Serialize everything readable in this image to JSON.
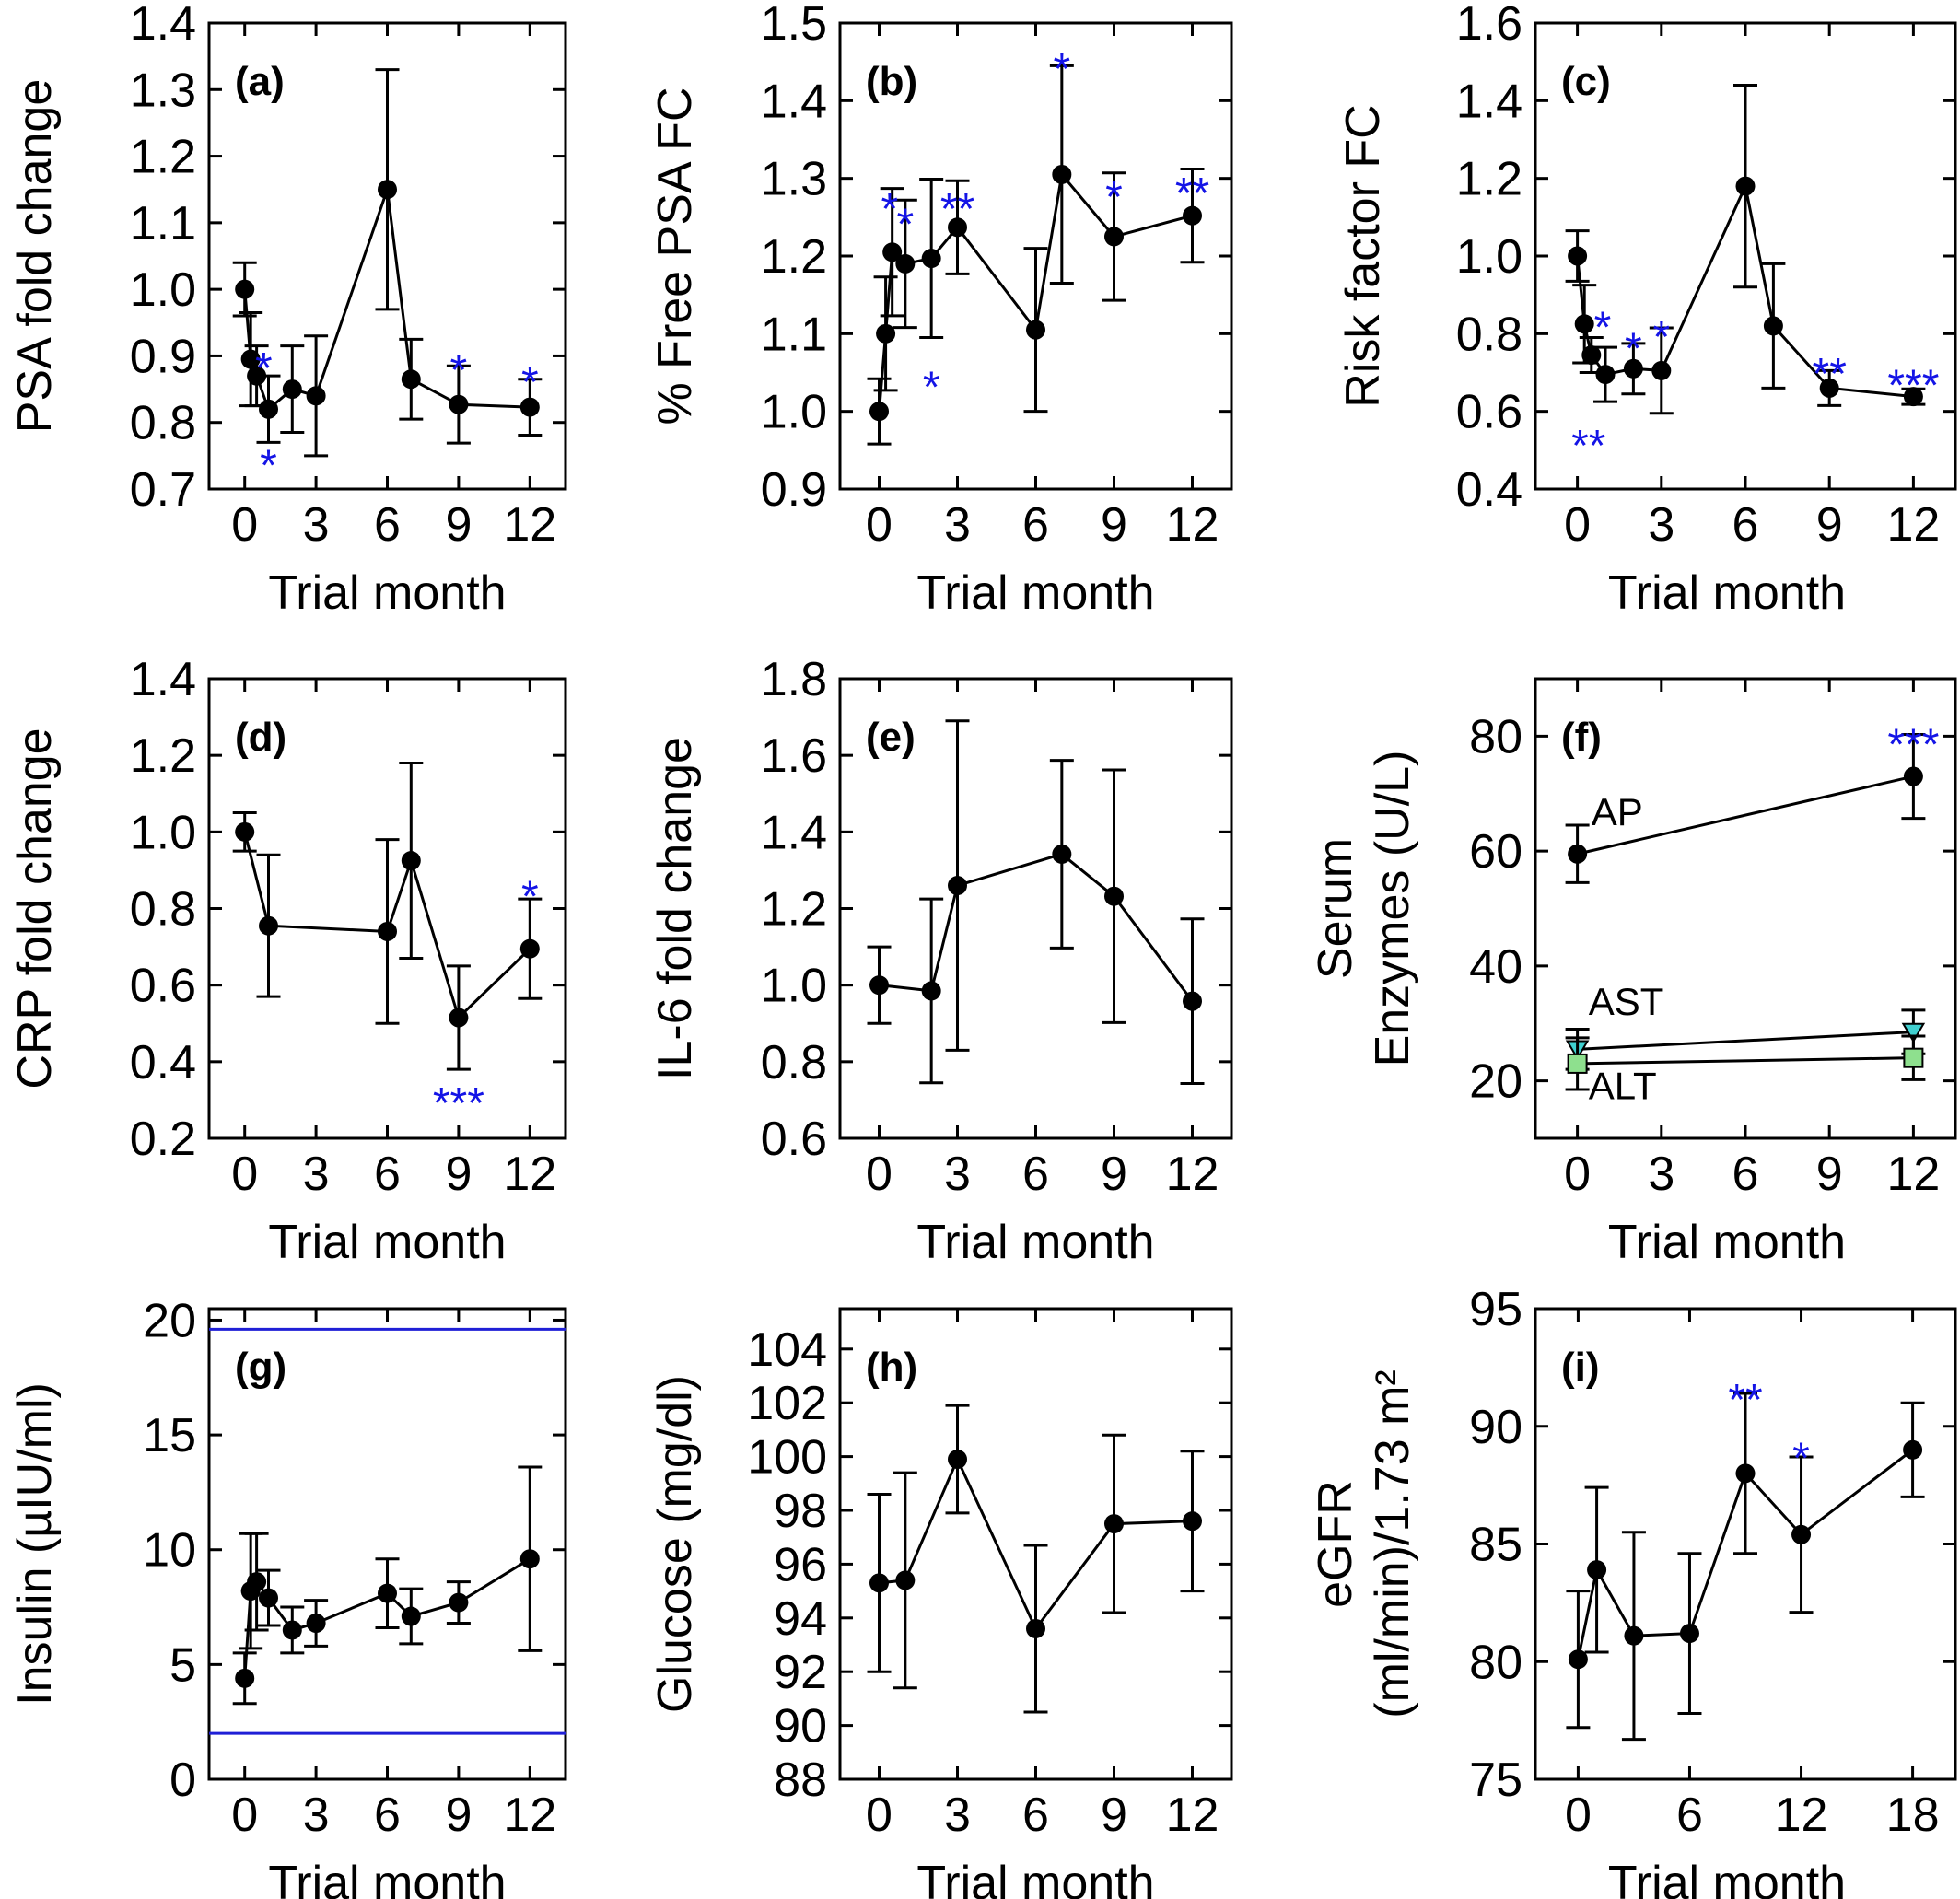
{
  "figure": {
    "colors": {
      "text": "#000000",
      "significance": "#1414e6",
      "ref_line": "#1f1fd6",
      "ast_marker": "#40d0d0",
      "alt_marker": "#8ee08e"
    }
  },
  "chart_data": [
    {
      "id": "a",
      "type": "line",
      "panel_label": "(a)",
      "xlabel": "Trial month",
      "ylabel": "PSA fold change",
      "xlim": [
        -1.5,
        13.5
      ],
      "ylim": [
        0.7,
        1.4
      ],
      "xticks": [
        0,
        3,
        6,
        9,
        12
      ],
      "xtick_labels": [
        "0",
        "3",
        "6",
        "9",
        "12"
      ],
      "yticks": [
        0.7,
        0.8,
        0.9,
        1.0,
        1.1,
        1.2,
        1.3,
        1.4
      ],
      "ytick_labels": [
        "0.7",
        "0.8",
        "0.9",
        "1.0",
        "1.1",
        "1.2",
        "1.3",
        "1.4"
      ],
      "series": [
        {
          "x": [
            0,
            0.25,
            0.5,
            1,
            2,
            3,
            6,
            7,
            9,
            12
          ],
          "y": [
            1.0,
            0.895,
            0.87,
            0.82,
            0.85,
            0.84,
            1.15,
            0.865,
            0.827,
            0.823
          ],
          "err": [
            0.04,
            0.07,
            0.045,
            0.05,
            0.065,
            0.09,
            0.18,
            0.06,
            0.058,
            0.042
          ],
          "marker": "circle",
          "color": "#000000"
        }
      ],
      "annotations": [
        {
          "text": "*",
          "x": 0.8,
          "y": 0.898
        },
        {
          "text": "*",
          "x": 1.0,
          "y": 0.752
        },
        {
          "text": "*",
          "x": 9.0,
          "y": 0.895
        },
        {
          "text": "*",
          "x": 12.0,
          "y": 0.877
        }
      ]
    },
    {
      "id": "b",
      "type": "line",
      "panel_label": "(b)",
      "xlabel": "Trial month",
      "ylabel": "% Free PSA FC",
      "xlim": [
        -1.5,
        13.5
      ],
      "ylim": [
        0.9,
        1.5
      ],
      "xticks": [
        0,
        3,
        6,
        9,
        12
      ],
      "xtick_labels": [
        "0",
        "3",
        "6",
        "9",
        "12"
      ],
      "yticks": [
        0.9,
        1.0,
        1.1,
        1.2,
        1.3,
        1.4,
        1.5
      ],
      "ytick_labels": [
        "0.9",
        "1.0",
        "1.1",
        "1.2",
        "1.3",
        "1.4",
        "1.5"
      ],
      "series": [
        {
          "x": [
            0,
            0.25,
            0.5,
            1,
            2,
            3,
            6,
            7,
            9,
            12
          ],
          "y": [
            1.0,
            1.1,
            1.205,
            1.19,
            1.197,
            1.237,
            1.105,
            1.305,
            1.225,
            1.252
          ],
          "err": [
            0.042,
            0.073,
            0.082,
            0.082,
            0.102,
            0.06,
            0.105,
            0.14,
            0.082,
            0.06
          ],
          "marker": "circle",
          "color": "#000000"
        }
      ],
      "annotations": [
        {
          "text": "*",
          "x": 0.4,
          "y": 1.275
        },
        {
          "text": "*",
          "x": 1.0,
          "y": 1.255
        },
        {
          "text": "*",
          "x": 2.0,
          "y": 1.045
        },
        {
          "text": "**",
          "x": 3.0,
          "y": 1.275
        },
        {
          "text": "*",
          "x": 7.0,
          "y": 1.455
        },
        {
          "text": "*",
          "x": 9.0,
          "y": 1.29
        },
        {
          "text": "**",
          "x": 12.0,
          "y": 1.295
        }
      ]
    },
    {
      "id": "c",
      "type": "line",
      "panel_label": "(c)",
      "xlabel": "Trial month",
      "ylabel": "Risk factor FC",
      "xlim": [
        -1.5,
        13.5
      ],
      "ylim": [
        0.4,
        1.6
      ],
      "xticks": [
        0,
        3,
        6,
        9,
        12
      ],
      "xtick_labels": [
        "0",
        "3",
        "6",
        "9",
        "12"
      ],
      "yticks": [
        0.4,
        0.6,
        0.8,
        1.0,
        1.2,
        1.4,
        1.6
      ],
      "ytick_labels": [
        "0.4",
        "0.6",
        "0.8",
        "1.0",
        "1.2",
        "1.4",
        "1.6"
      ],
      "series": [
        {
          "x": [
            0,
            0.25,
            0.5,
            1,
            2,
            3,
            6,
            7,
            9,
            12
          ],
          "y": [
            1.0,
            0.825,
            0.745,
            0.695,
            0.71,
            0.705,
            1.18,
            0.82,
            0.66,
            0.638
          ],
          "err": [
            0.065,
            0.1,
            0.045,
            0.07,
            0.065,
            0.11,
            0.26,
            0.16,
            0.045,
            0.02
          ],
          "marker": "circle",
          "color": "#000000"
        }
      ],
      "annotations": [
        {
          "text": "*",
          "x": 0.9,
          "y": 0.845
        },
        {
          "text": "**",
          "x": 0.4,
          "y": 0.54
        },
        {
          "text": "*",
          "x": 2.0,
          "y": 0.79
        },
        {
          "text": "*",
          "x": 3.0,
          "y": 0.82
        },
        {
          "text": "**",
          "x": 9.0,
          "y": 0.725
        },
        {
          "text": "***",
          "x": 12.0,
          "y": 0.695
        }
      ]
    },
    {
      "id": "d",
      "type": "line",
      "panel_label": "(d)",
      "xlabel": "Trial month",
      "ylabel": "CRP fold change",
      "xlim": [
        -1.5,
        13.5
      ],
      "ylim": [
        0.2,
        1.4
      ],
      "xticks": [
        0,
        3,
        6,
        9,
        12
      ],
      "xtick_labels": [
        "0",
        "3",
        "6",
        "9",
        "12"
      ],
      "yticks": [
        0.2,
        0.4,
        0.6,
        0.8,
        1.0,
        1.2,
        1.4
      ],
      "ytick_labels": [
        "0.2",
        "0.4",
        "0.6",
        "0.8",
        "1.0",
        "1.2",
        "1.4"
      ],
      "series": [
        {
          "x": [
            0,
            1,
            6,
            7,
            9,
            12
          ],
          "y": [
            1.0,
            0.755,
            0.74,
            0.925,
            0.515,
            0.695
          ],
          "err": [
            0.05,
            0.185,
            0.24,
            0.255,
            0.135,
            0.13
          ],
          "marker": "circle",
          "color": "#000000"
        }
      ],
      "annotations": [
        {
          "text": "***",
          "x": 9.0,
          "y": 0.32
        },
        {
          "text": "*",
          "x": 12.0,
          "y": 0.86
        }
      ]
    },
    {
      "id": "e",
      "type": "line",
      "panel_label": "(e)",
      "xlabel": "Trial month",
      "ylabel": "IL-6 fold change",
      "xlim": [
        -1.5,
        13.5
      ],
      "ylim": [
        0.6,
        1.8
      ],
      "xticks": [
        0,
        3,
        6,
        9,
        12
      ],
      "xtick_labels": [
        "0",
        "3",
        "6",
        "9",
        "12"
      ],
      "yticks": [
        0.6,
        0.8,
        1.0,
        1.2,
        1.4,
        1.6,
        1.8
      ],
      "ytick_labels": [
        "0.6",
        "0.8",
        "1.0",
        "1.2",
        "1.4",
        "1.6",
        "1.8"
      ],
      "series": [
        {
          "x": [
            0,
            2,
            3,
            7,
            9,
            12
          ],
          "y": [
            1.0,
            0.985,
            1.26,
            1.342,
            1.232,
            0.958
          ],
          "err": [
            0.1,
            0.24,
            0.43,
            0.245,
            0.33,
            0.215
          ],
          "marker": "circle",
          "color": "#000000"
        }
      ],
      "annotations": []
    },
    {
      "id": "f",
      "type": "line",
      "panel_label": "(f)",
      "xlabel": "Trial month",
      "ylabel": "Serum\nEnzymes (U/L)",
      "xlim": [
        -1.5,
        13.5
      ],
      "ylim": [
        10,
        90
      ],
      "xticks": [
        0,
        3,
        6,
        9,
        12
      ],
      "xtick_labels": [
        "0",
        "3",
        "6",
        "9",
        "12"
      ],
      "yticks": [
        20,
        40,
        60,
        80
      ],
      "ytick_labels": [
        "20",
        "40",
        "60",
        "80"
      ],
      "series": [
        {
          "name": "AP",
          "x": [
            0,
            12
          ],
          "y": [
            59.5,
            73
          ],
          "err": [
            5,
            7.3
          ],
          "marker": "circle",
          "color": "#000000",
          "label_x": 0.5,
          "label_y": 64.5
        },
        {
          "name": "AST",
          "x": [
            0,
            12
          ],
          "y": [
            25.5,
            28.5
          ],
          "err": [
            3.5,
            3.8
          ],
          "marker": "triangle-down",
          "color": "#40d0d0",
          "label_x": 0.4,
          "label_y": 31.5
        },
        {
          "name": "ALT",
          "x": [
            0,
            12
          ],
          "y": [
            23,
            24
          ],
          "err": [
            4.5,
            3.8
          ],
          "marker": "square",
          "color": "#8ee08e",
          "label_x": 0.4,
          "label_y": 16.8
        }
      ],
      "annotations": [
        {
          "text": "***",
          "x": 12.0,
          "y": 80.5
        }
      ]
    },
    {
      "id": "g",
      "type": "line",
      "panel_label": "(g)",
      "xlabel": "Trial month",
      "ylabel": "Insulin (µIU/ml)",
      "xlim": [
        -1.5,
        13.5
      ],
      "ylim": [
        0,
        20.5
      ],
      "xticks": [
        0,
        3,
        6,
        9,
        12
      ],
      "xtick_labels": [
        "0",
        "3",
        "6",
        "9",
        "12"
      ],
      "yticks": [
        0,
        5,
        10,
        15,
        20
      ],
      "ytick_labels": [
        "0",
        "5",
        "10",
        "15",
        "20"
      ],
      "reference_lines": [
        2.0,
        19.6
      ],
      "series": [
        {
          "x": [
            0,
            0.25,
            0.5,
            1,
            2,
            3,
            6,
            7,
            9,
            12
          ],
          "y": [
            4.4,
            8.2,
            8.6,
            7.9,
            6.5,
            6.8,
            8.1,
            7.1,
            7.7,
            9.6
          ],
          "err": [
            1.1,
            2.5,
            2.1,
            1.2,
            1.0,
            1.0,
            1.5,
            1.2,
            0.9,
            4.0
          ],
          "marker": "circle",
          "color": "#000000"
        }
      ],
      "annotations": []
    },
    {
      "id": "h",
      "type": "line",
      "panel_label": "(h)",
      "xlabel": "Trial month",
      "ylabel": "Glucose (mg/dl)",
      "xlim": [
        -1.5,
        13.5
      ],
      "ylim": [
        88,
        105.5
      ],
      "xticks": [
        0,
        3,
        6,
        9,
        12
      ],
      "xtick_labels": [
        "0",
        "3",
        "6",
        "9",
        "12"
      ],
      "yticks": [
        88,
        90,
        92,
        94,
        96,
        98,
        100,
        102,
        104
      ],
      "ytick_labels": [
        "88",
        "90",
        "92",
        "94",
        "96",
        "98",
        "100",
        "102",
        "104"
      ],
      "series": [
        {
          "x": [
            0,
            1,
            3,
            6,
            9,
            12
          ],
          "y": [
            95.3,
            95.4,
            99.9,
            93.6,
            97.5,
            97.6
          ],
          "err": [
            3.3,
            4.0,
            2.0,
            3.1,
            3.3,
            2.6
          ],
          "marker": "circle",
          "color": "#000000"
        }
      ],
      "annotations": []
    },
    {
      "id": "i",
      "type": "line",
      "panel_label": "(i)",
      "xlabel": "Trial month",
      "ylabel": "eGFR\n(ml/min)/1.73 m²",
      "xlim": [
        -2.3,
        20.3
      ],
      "ylim": [
        75,
        95
      ],
      "xticks": [
        0,
        6,
        12,
        18
      ],
      "xtick_labels": [
        "0",
        "6",
        "12",
        "18"
      ],
      "yticks": [
        75,
        80,
        85,
        90,
        95
      ],
      "ytick_labels": [
        "75",
        "80",
        "85",
        "90",
        "95"
      ],
      "series": [
        {
          "x": [
            0,
            1,
            3,
            6,
            9,
            12,
            18
          ],
          "y": [
            80.1,
            83.9,
            81.1,
            81.2,
            88.0,
            85.4,
            89.0
          ],
          "err": [
            2.9,
            3.5,
            4.4,
            3.4,
            3.4,
            3.3,
            2.0
          ],
          "marker": "circle",
          "color": "#000000"
        }
      ],
      "annotations": [
        {
          "text": "**",
          "x": 9.0,
          "y": 91.6
        },
        {
          "text": "*",
          "x": 12.0,
          "y": 89.1
        }
      ]
    }
  ]
}
